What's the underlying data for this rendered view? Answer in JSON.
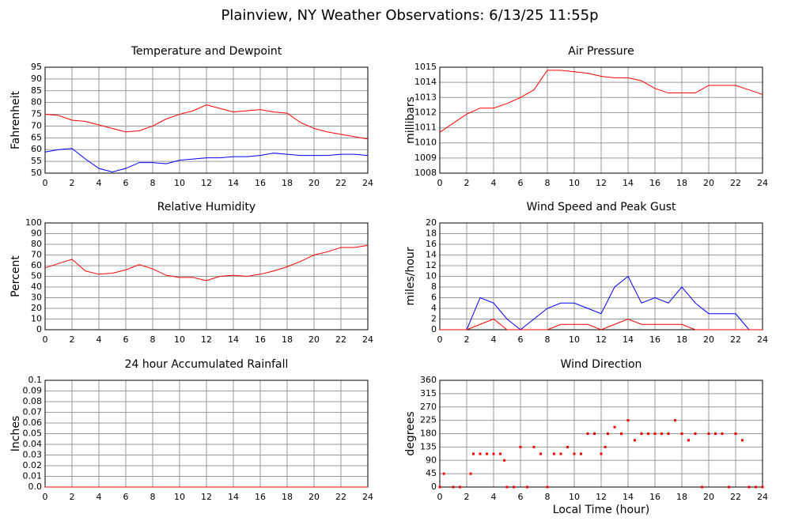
{
  "title": "Plainview, NY Weather Observations: 6/13/25 11:55p",
  "chart_data": [
    {
      "type": "line",
      "title": "Temperature and Dewpoint",
      "ylabel": "Fahrenheit",
      "x": [
        0,
        1,
        2,
        3,
        4,
        5,
        6,
        7,
        8,
        9,
        10,
        11,
        12,
        13,
        14,
        15,
        16,
        17,
        18,
        19,
        20,
        21,
        22,
        23,
        24
      ],
      "series": [
        {
          "color": "#ff0000",
          "values": [
            75,
            74.5,
            72.5,
            72,
            70.5,
            69,
            67.5,
            68,
            70,
            73,
            75,
            76.5,
            79,
            77.5,
            76,
            76.5,
            77,
            76,
            75.5,
            71.5,
            69,
            67.5,
            66.5,
            65.5,
            64.5
          ]
        },
        {
          "color": "#0000ff",
          "values": [
            59,
            60,
            60.5,
            56,
            52,
            50.5,
            52,
            54.5,
            54.5,
            54,
            55.5,
            56,
            56.5,
            56.5,
            57,
            57,
            57.5,
            58.5,
            58,
            57.5,
            57.5,
            57.5,
            58,
            58,
            57.5
          ]
        }
      ],
      "xlim": [
        0,
        24
      ],
      "xticks": [
        0,
        2,
        4,
        6,
        8,
        10,
        12,
        14,
        16,
        18,
        20,
        22,
        24
      ],
      "ylim": [
        50,
        95
      ],
      "yticks": [
        50,
        55,
        60,
        65,
        70,
        75,
        80,
        85,
        90,
        95
      ],
      "grid": true
    },
    {
      "type": "line",
      "title": "Air Pressure",
      "ylabel": "millibars",
      "x": [
        0,
        1,
        2,
        3,
        4,
        5,
        6,
        7,
        8,
        9,
        10,
        11,
        12,
        13,
        14,
        15,
        16,
        17,
        18,
        19,
        20,
        21,
        22,
        23,
        24
      ],
      "series": [
        {
          "color": "#ff0000",
          "values": [
            1010.7,
            1011.3,
            1011.9,
            1012.3,
            1012.3,
            1012.6,
            1013,
            1013.5,
            1014.8,
            1014.8,
            1014.7,
            1014.6,
            1014.4,
            1014.3,
            1014.3,
            1014.1,
            1013.6,
            1013.3,
            1013.3,
            1013.3,
            1013.8,
            1013.8,
            1013.8,
            1013.5,
            1013.2
          ]
        }
      ],
      "xlim": [
        0,
        24
      ],
      "xticks": [
        0,
        2,
        4,
        6,
        8,
        10,
        12,
        14,
        16,
        18,
        20,
        22,
        24
      ],
      "ylim": [
        1008,
        1015
      ],
      "yticks": [
        1008,
        1009,
        1010,
        1011,
        1012,
        1013,
        1014,
        1015
      ],
      "grid": true
    },
    {
      "type": "line",
      "title": "Relative Humidity",
      "ylabel": "Percent",
      "x": [
        0,
        1,
        2,
        3,
        4,
        5,
        6,
        7,
        8,
        9,
        10,
        11,
        12,
        13,
        14,
        15,
        16,
        17,
        18,
        19,
        20,
        21,
        22,
        23,
        24
      ],
      "series": [
        {
          "color": "#ff0000",
          "values": [
            58,
            62,
            66,
            55,
            52,
            53,
            56,
            61,
            57,
            51,
            49,
            49,
            46,
            50,
            51,
            50,
            52,
            55,
            59,
            64,
            70,
            73,
            77,
            77,
            79
          ]
        }
      ],
      "xlim": [
        0,
        24
      ],
      "xticks": [
        0,
        2,
        4,
        6,
        8,
        10,
        12,
        14,
        16,
        18,
        20,
        22,
        24
      ],
      "ylim": [
        0,
        100
      ],
      "yticks": [
        0,
        10,
        20,
        30,
        40,
        50,
        60,
        70,
        80,
        90,
        100
      ],
      "grid": true
    },
    {
      "type": "line",
      "title": "Wind Speed and Peak Gust",
      "ylabel": "miles/hour",
      "x": [
        0,
        1,
        2,
        3,
        4,
        5,
        6,
        7,
        8,
        9,
        10,
        11,
        12,
        13,
        14,
        15,
        16,
        17,
        18,
        19,
        20,
        21,
        22,
        23,
        24
      ],
      "series": [
        {
          "color": "#0000ff",
          "values": [
            0,
            0,
            0,
            6,
            5,
            2,
            0,
            2,
            4,
            5,
            5,
            4,
            3,
            8,
            10,
            5,
            6,
            5,
            8,
            5,
            3,
            3,
            3,
            0,
            0
          ]
        },
        {
          "color": "#ff0000",
          "values": [
            0,
            0,
            0,
            1,
            2,
            0,
            0,
            0,
            0,
            1,
            1,
            1,
            0,
            1,
            2,
            1,
            1,
            1,
            1,
            0,
            0,
            0,
            0,
            0,
            0
          ]
        }
      ],
      "xlim": [
        0,
        24
      ],
      "xticks": [
        0,
        2,
        4,
        6,
        8,
        10,
        12,
        14,
        16,
        18,
        20,
        22,
        24
      ],
      "ylim": [
        0,
        20
      ],
      "yticks": [
        0,
        2,
        4,
        6,
        8,
        10,
        12,
        14,
        16,
        18,
        20
      ],
      "grid": true
    },
    {
      "type": "line",
      "title": "24 hour Accumulated Rainfall",
      "ylabel": "Inches",
      "x": [
        0,
        1,
        2,
        3,
        4,
        5,
        6,
        7,
        8,
        9,
        10,
        11,
        12,
        13,
        14,
        15,
        16,
        17,
        18,
        19,
        20,
        21,
        22,
        23,
        24
      ],
      "series": [
        {
          "color": "#ff0000",
          "values": [
            0,
            0,
            0,
            0,
            0,
            0,
            0,
            0,
            0,
            0,
            0,
            0,
            0,
            0,
            0,
            0,
            0,
            0,
            0,
            0,
            0,
            0,
            0,
            0,
            0
          ]
        }
      ],
      "xlim": [
        0,
        24
      ],
      "xticks": [
        0,
        2,
        4,
        6,
        8,
        10,
        12,
        14,
        16,
        18,
        20,
        22,
        24
      ],
      "ylim": [
        0,
        0.1
      ],
      "yticks": [
        {
          "value": 0,
          "label": "0.0"
        },
        0.01,
        0.02,
        0.03,
        0.04,
        0.05,
        0.06,
        0.07,
        0.08,
        0.09,
        0.1
      ],
      "grid": true
    },
    {
      "type": "scatter",
      "title": "Wind Direction",
      "ylabel": "degrees",
      "xlabel": "Local Time (hour)",
      "x": [
        0,
        0.3,
        1,
        1.5,
        2.3,
        2.5,
        3,
        3.5,
        4,
        4.5,
        4.8,
        5,
        5.5,
        6,
        6.5,
        7,
        7.5,
        8,
        8.5,
        9,
        9.5,
        10,
        10.5,
        11,
        11.5,
        12,
        12.3,
        12.5,
        13,
        13.5,
        14,
        14.5,
        15,
        15.5,
        16,
        16.5,
        17,
        17.5,
        18,
        18.5,
        19,
        19.5,
        20,
        20.5,
        21,
        21.5,
        22,
        22.5,
        23,
        23.5,
        24
      ],
      "series": [
        {
          "color": "#ff0000",
          "values": [
            0,
            45,
            0,
            0,
            45,
            112,
            112,
            112,
            112,
            112,
            90,
            0,
            0,
            135,
            0,
            135,
            112,
            0,
            112,
            112,
            135,
            112,
            112,
            180,
            180,
            112,
            135,
            180,
            202,
            180,
            225,
            158,
            180,
            180,
            180,
            180,
            180,
            225,
            180,
            158,
            180,
            0,
            180,
            180,
            180,
            0,
            180,
            158,
            0,
            0,
            0
          ]
        }
      ],
      "xlim": [
        0,
        24
      ],
      "xticks": [
        0,
        2,
        4,
        6,
        8,
        10,
        12,
        14,
        16,
        18,
        20,
        22,
        24
      ],
      "ylim": [
        0,
        360
      ],
      "yticks": [
        0,
        45,
        90,
        135,
        180,
        225,
        270,
        315,
        360
      ],
      "grid": true
    }
  ]
}
